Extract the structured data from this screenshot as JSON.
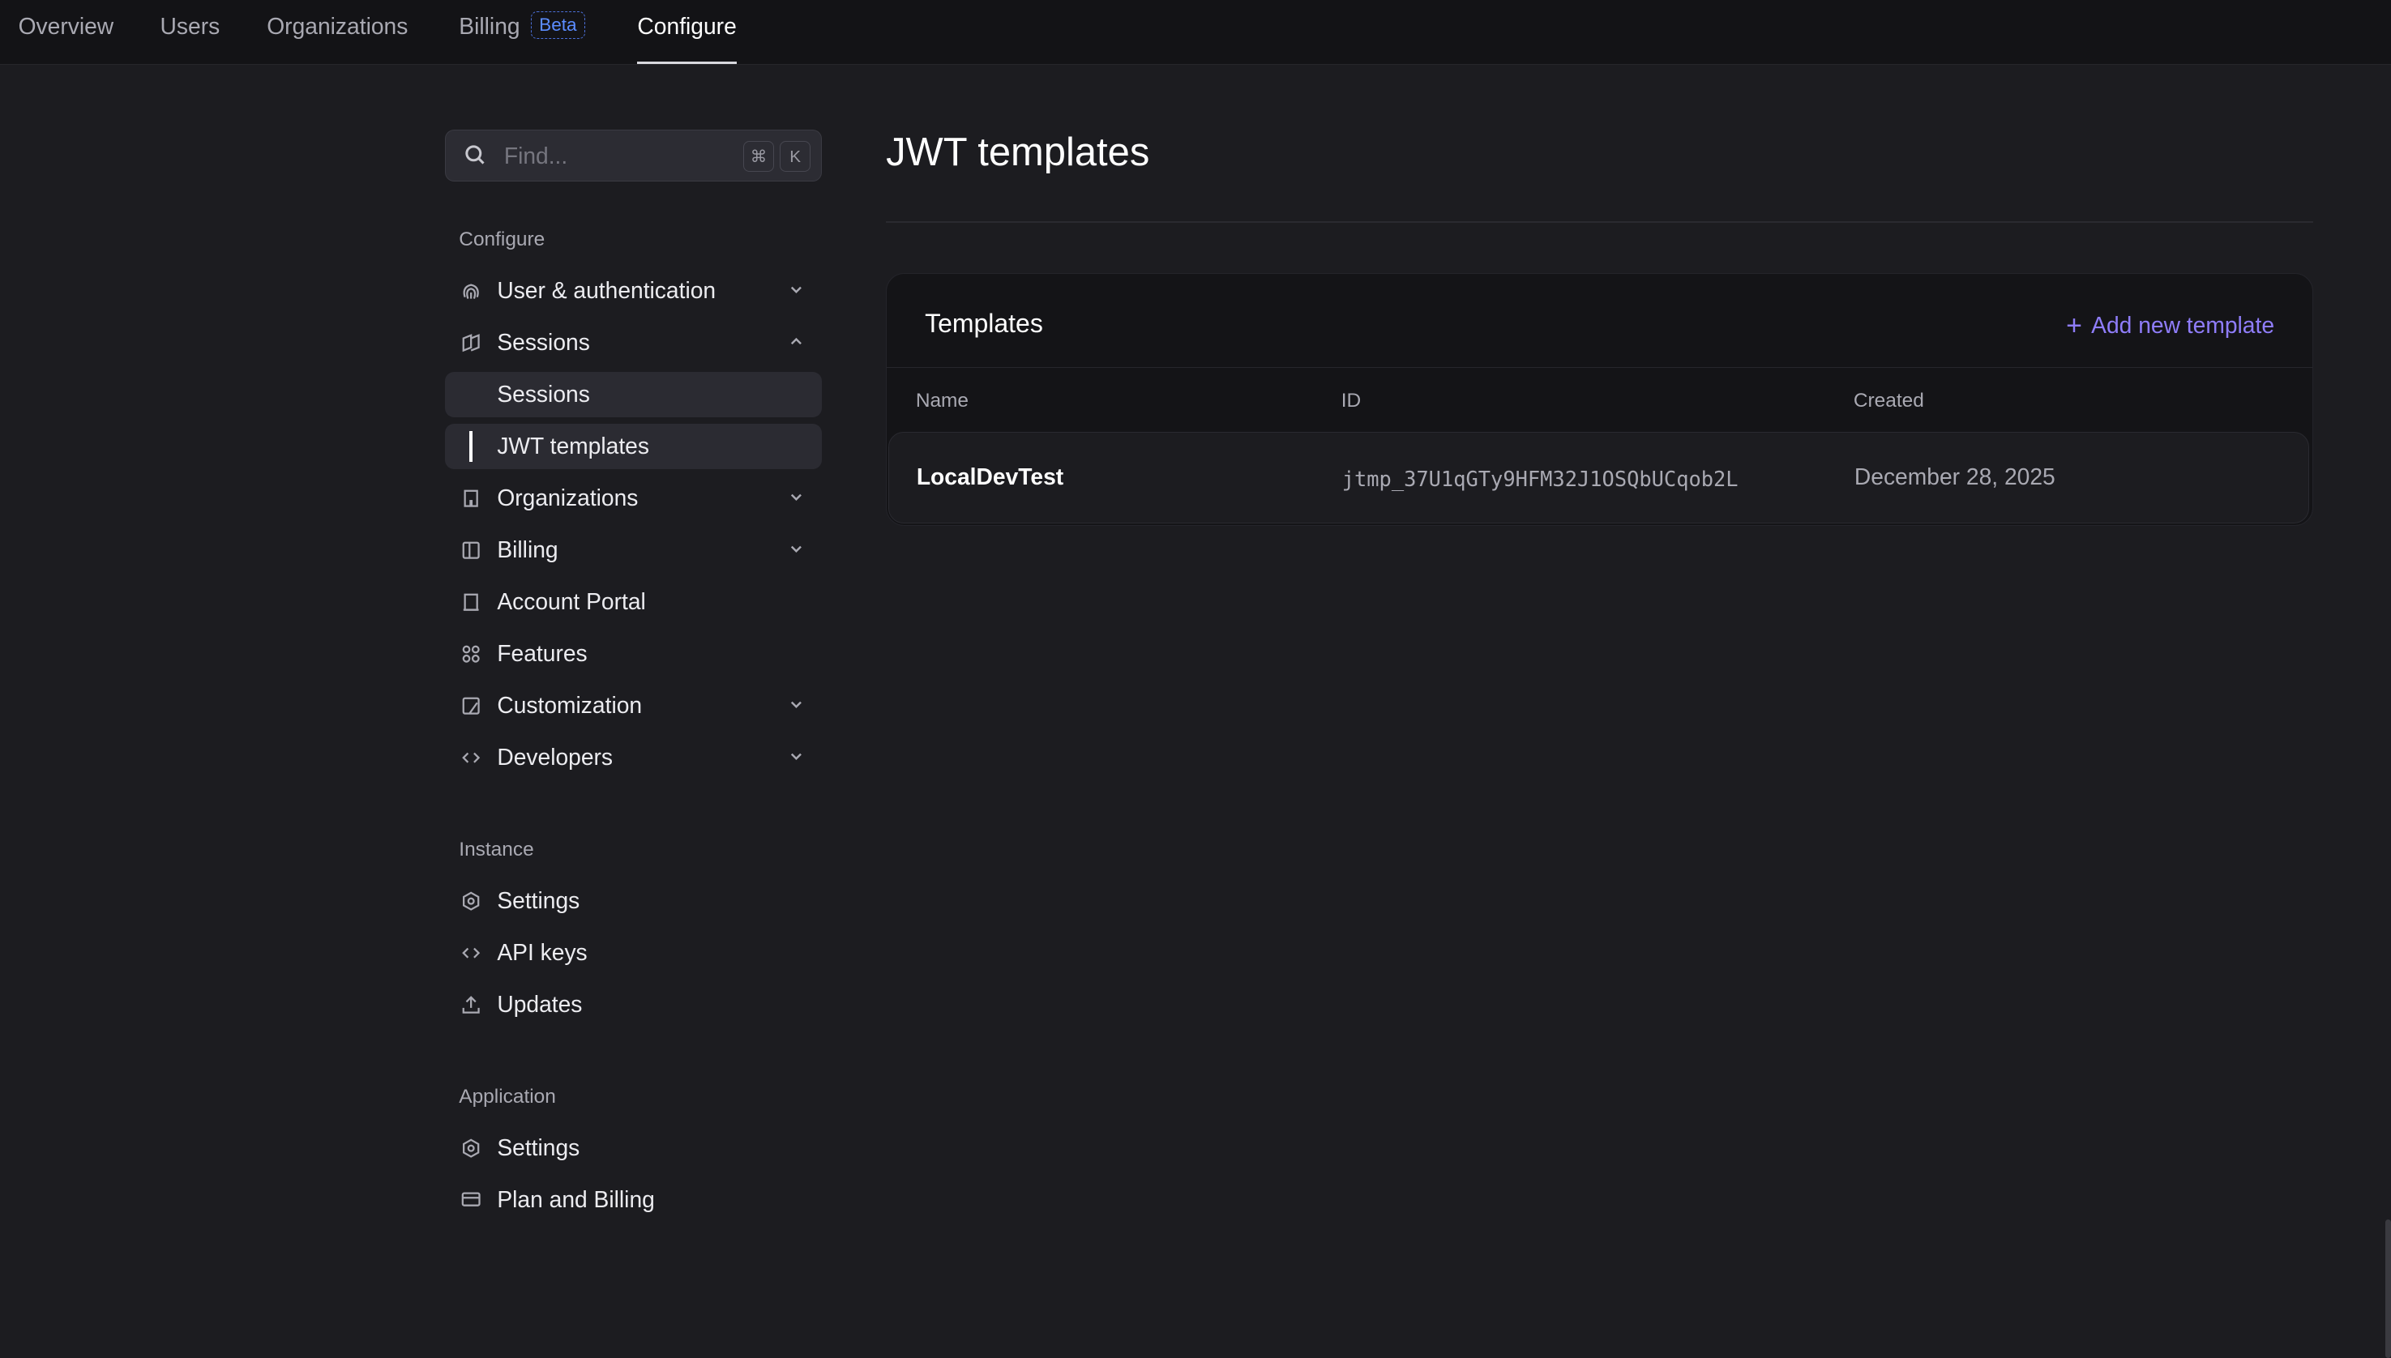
{
  "topnav": {
    "tabs": [
      {
        "label": "Overview"
      },
      {
        "label": "Users"
      },
      {
        "label": "Organizations"
      },
      {
        "label": "Billing",
        "badge": "Beta"
      },
      {
        "label": "Configure",
        "active": true
      }
    ]
  },
  "search": {
    "placeholder": "Find...",
    "shortcut_mod": "⌘",
    "shortcut_key": "K"
  },
  "sidebar": {
    "configure_heading": "Configure",
    "configure_items": [
      {
        "label": "User & authentication",
        "icon": "fingerprint-icon",
        "expandable": true
      },
      {
        "label": "Sessions",
        "icon": "sessions-icon",
        "expanded": true
      },
      {
        "label": "Sessions",
        "sub": true
      },
      {
        "label": "JWT templates",
        "sub": true,
        "active": true
      },
      {
        "label": "Organizations",
        "icon": "building-icon",
        "expandable": true
      },
      {
        "label": "Billing",
        "icon": "billing-icon",
        "expandable": true
      },
      {
        "label": "Account Portal",
        "icon": "portal-icon"
      },
      {
        "label": "Features",
        "icon": "grid-icon"
      },
      {
        "label": "Customization",
        "icon": "palette-icon",
        "expandable": true
      },
      {
        "label": "Developers",
        "icon": "code-icon",
        "expandable": true
      }
    ],
    "instance_heading": "Instance",
    "instance_items": [
      {
        "label": "Settings",
        "icon": "gear-icon"
      },
      {
        "label": "API keys",
        "icon": "code-icon"
      },
      {
        "label": "Updates",
        "icon": "upload-icon"
      }
    ],
    "application_heading": "Application",
    "application_items": [
      {
        "label": "Settings",
        "icon": "gear-icon"
      },
      {
        "label": "Plan and Billing",
        "icon": "card-icon"
      }
    ]
  },
  "main": {
    "title": "JWT templates",
    "card": {
      "title": "Templates",
      "add_label": "Add new template",
      "columns": [
        "Name",
        "ID",
        "Created"
      ],
      "rows": [
        {
          "name": "LocalDevTest",
          "id": "jtmp_37U1qGTy9HFM32J1OSQbUCqob2L",
          "created": "December 28, 2025"
        }
      ]
    }
  },
  "colors": {
    "accent": "#8f7dfa",
    "beta": "#5b8cff",
    "background": "#1c1c20"
  }
}
